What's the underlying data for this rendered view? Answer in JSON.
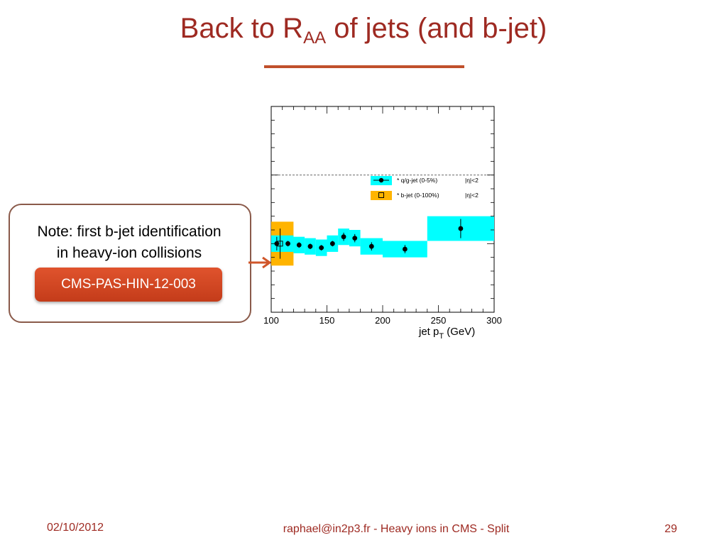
{
  "slide": {
    "title_main": "Back to R",
    "title_sub": "AA",
    "title_rest": " of jets (and b-jet)"
  },
  "note": {
    "line1": "Note: first b-jet identification",
    "line2": "in heavy-ion collisions",
    "reference": "CMS-PAS-HIN-12-003"
  },
  "footer": {
    "date": "02/10/2012",
    "center": "raphael@in2p3.fr - Heavy ions in CMS - Split",
    "page": "29"
  },
  "colors": {
    "title": "#9e2a22",
    "accent": "#c0502b",
    "qg_band": "#00ffff",
    "b_band": "#ffb400"
  },
  "chart_data": {
    "type": "scatter",
    "xlabel": "jet p",
    "xlabel_sub": "T",
    "xlabel_unit": " (GeV)",
    "xlim": [
      100,
      300
    ],
    "x_ticks": [
      100,
      150,
      200,
      250,
      300
    ],
    "ylim": [
      0,
      1.5
    ],
    "reference_line": 1.0,
    "grid": false,
    "legend": "upper-right",
    "series": [
      {
        "name": "* q/g-jet (0-5%)",
        "eta": "|η|<2",
        "marker": "filled-circle",
        "band_color": "#00ffff",
        "points": [
          {
            "x": 105,
            "y": 0.5,
            "err": 0.05,
            "box_lo": 100,
            "box_hi": 110,
            "sys": 0.06
          },
          {
            "x": 115,
            "y": 0.5,
            "err": 0.02,
            "box_lo": 110,
            "box_hi": 120,
            "sys": 0.06
          },
          {
            "x": 125,
            "y": 0.49,
            "err": 0.02,
            "box_lo": 120,
            "box_hi": 130,
            "sys": 0.06
          },
          {
            "x": 135,
            "y": 0.48,
            "err": 0.02,
            "box_lo": 130,
            "box_hi": 140,
            "sys": 0.06
          },
          {
            "x": 145,
            "y": 0.47,
            "err": 0.02,
            "box_lo": 140,
            "box_hi": 150,
            "sys": 0.06
          },
          {
            "x": 155,
            "y": 0.5,
            "err": 0.02,
            "box_lo": 150,
            "box_hi": 160,
            "sys": 0.06
          },
          {
            "x": 165,
            "y": 0.55,
            "err": 0.03,
            "box_lo": 160,
            "box_hi": 170,
            "sys": 0.06
          },
          {
            "x": 175,
            "y": 0.54,
            "err": 0.03,
            "box_lo": 170,
            "box_hi": 180,
            "sys": 0.06
          },
          {
            "x": 190,
            "y": 0.48,
            "err": 0.03,
            "box_lo": 180,
            "box_hi": 200,
            "sys": 0.06
          },
          {
            "x": 220,
            "y": 0.46,
            "err": 0.03,
            "box_lo": 200,
            "box_hi": 240,
            "sys": 0.06
          },
          {
            "x": 270,
            "y": 0.61,
            "err": 0.07,
            "box_lo": 240,
            "box_hi": 300,
            "sys": 0.09
          }
        ]
      },
      {
        "name": "* b-jet (0-100%)",
        "eta": "|η|<2",
        "marker": "open-square",
        "band_color": "#ffb400",
        "points": [
          {
            "x": 108,
            "y": 0.5,
            "err": 0.11,
            "box_lo": 100,
            "box_hi": 120,
            "sys": 0.16
          }
        ]
      }
    ]
  }
}
